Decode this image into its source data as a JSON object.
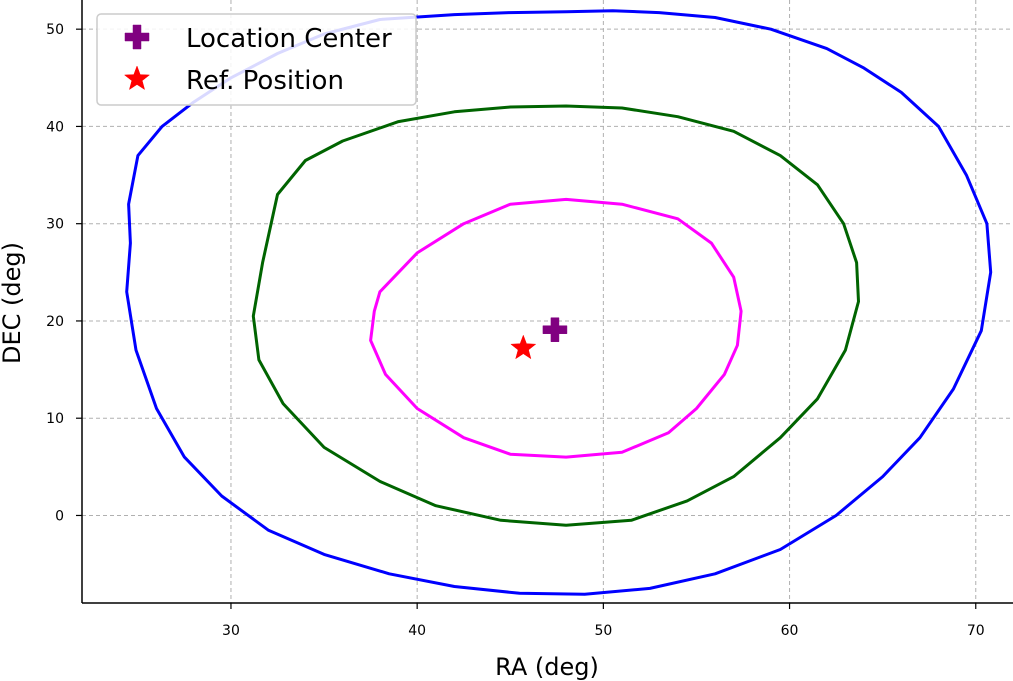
{
  "chart_data": {
    "type": "scatter",
    "xlabel": "RA (deg)",
    "ylabel": "DEC (deg)",
    "xlim": [
      22,
      72
    ],
    "ylim": [
      -9,
      53
    ],
    "xticks": [
      30,
      40,
      50,
      60,
      70
    ],
    "yticks": [
      0,
      10,
      20,
      30,
      40,
      50
    ],
    "grid": true,
    "legend_position": "top-left",
    "contours": [
      {
        "color": "#0000ff",
        "x": [
          24.5,
          25.0,
          26.3,
          28.0,
          30.0,
          32.5,
          35.0,
          38.0,
          42.0,
          45.0,
          48.0,
          50.5,
          53.0,
          56.0,
          59.0,
          62.0,
          64.0,
          66.0,
          68.0,
          69.5,
          70.6,
          70.8,
          70.3,
          68.8,
          67.0,
          65.0,
          62.5,
          59.5,
          56.0,
          52.5,
          49.0,
          45.5,
          42.0,
          38.5,
          35.0,
          32.0,
          29.5,
          27.5,
          26.0,
          24.9,
          24.4,
          24.6
        ],
        "y": [
          32.0,
          37.0,
          40.0,
          42.5,
          45.0,
          47.5,
          49.5,
          51.0,
          51.5,
          51.7,
          51.8,
          51.9,
          51.7,
          51.2,
          50.0,
          48.0,
          46.0,
          43.5,
          40.0,
          35.0,
          30.0,
          25.0,
          19.0,
          13.0,
          8.0,
          4.0,
          0.0,
          -3.5,
          -6.0,
          -7.5,
          -8.1,
          -8.0,
          -7.3,
          -6.0,
          -4.0,
          -1.5,
          2.0,
          6.0,
          11.0,
          17.0,
          23.0,
          28.0
        ]
      },
      {
        "color": "#006400",
        "x": [
          32.5,
          34.0,
          36.0,
          39.0,
          42.0,
          45.0,
          48.0,
          51.0,
          54.0,
          57.0,
          59.5,
          61.5,
          62.9,
          63.6,
          63.7,
          63.0,
          61.5,
          59.5,
          57.0,
          54.5,
          51.5,
          48.0,
          44.5,
          41.0,
          38.0,
          35.0,
          32.8,
          31.5,
          31.2,
          31.7
        ],
        "y": [
          33.0,
          36.5,
          38.5,
          40.5,
          41.5,
          42.0,
          42.1,
          41.9,
          41.0,
          39.5,
          37.0,
          34.0,
          30.0,
          26.0,
          22.0,
          17.0,
          12.0,
          8.0,
          4.0,
          1.5,
          -0.5,
          -1.0,
          -0.5,
          1.0,
          3.5,
          7.0,
          11.5,
          16.0,
          20.5,
          26.0
        ]
      },
      {
        "color": "#ff00ff",
        "x": [
          38.0,
          40.0,
          42.5,
          45.0,
          48.0,
          51.0,
          54.0,
          55.8,
          57.0,
          57.4,
          57.2,
          56.5,
          55.0,
          53.5,
          51.0,
          48.0,
          45.0,
          42.5,
          40.0,
          38.3,
          37.5,
          37.7
        ],
        "y": [
          23.0,
          27.0,
          30.0,
          32.0,
          32.5,
          32.0,
          30.5,
          28.0,
          24.5,
          21.0,
          17.5,
          14.5,
          11.0,
          8.5,
          6.5,
          6.0,
          6.3,
          8.0,
          11.0,
          14.5,
          18.0,
          21.0
        ]
      }
    ],
    "points": [
      {
        "name": "Location Center",
        "marker": "plus",
        "color": "#800080",
        "x": 47.4,
        "y": 19.1
      },
      {
        "name": "Ref. Position",
        "marker": "star",
        "color": "#ff0000",
        "x": 45.7,
        "y": 17.2
      }
    ]
  }
}
